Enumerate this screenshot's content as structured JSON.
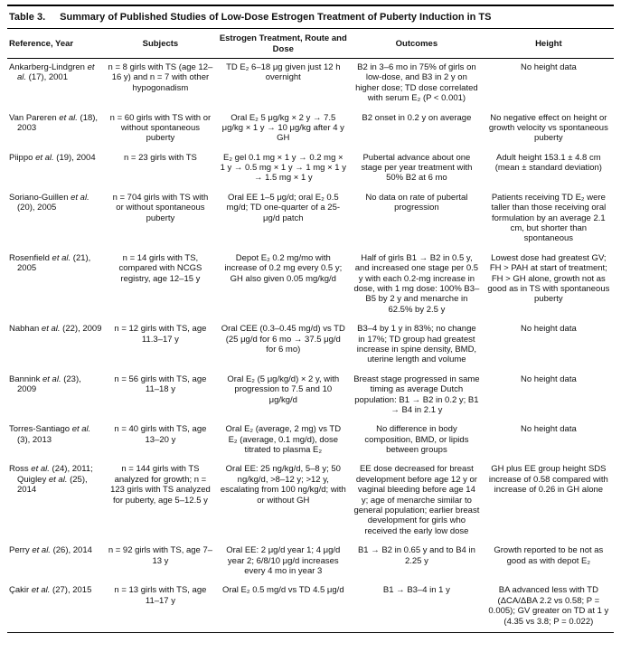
{
  "title": {
    "label": "Table 3.",
    "text": "Summary of Published Studies of Low-Dose Estrogen Treatment of Puberty Induction in TS"
  },
  "table": {
    "columns": [
      "Reference, Year",
      "Subjects",
      "Estrogen Treatment, Route and Dose",
      "Outcomes",
      "Height"
    ],
    "rows": [
      {
        "reference": "Ankarberg-Lindgren et al. (17), 2001",
        "subjects": "n = 8 girls with TS (age 12–16 y) and n = 7 with other hypogonadism",
        "treatment": "TD E₂ 6–18 μg given just 12 h overnight",
        "outcomes": "B2 in 3–6 mo in 75% of girls on low-dose, and B3 in 2 y on higher dose; TD dose correlated with serum E₂ (P < 0.001)",
        "height": "No height data"
      },
      {
        "reference": "Van Pareren et al. (18), 2003",
        "subjects": "n = 60 girls with TS with or without spontaneous puberty",
        "treatment": "Oral E₂ 5 μg/kg × 2 y → 7.5 μg/kg × 1 y → 10 μg/kg after 4 y GH",
        "outcomes": "B2 onset in 0.2 y on average",
        "height": "No negative effect on height or growth velocity vs spontaneous puberty"
      },
      {
        "reference": "Piippo et al. (19), 2004",
        "subjects": "n = 23 girls with TS",
        "treatment": "E₂ gel 0.1 mg × 1 y → 0.2 mg × 1 y → 0.5 mg × 1 y → 1 mg × 1 y → 1.5 mg × 1 y",
        "outcomes": "Pubertal advance about one stage per year treatment with 50% B2 at 6 mo",
        "height": "Adult height 153.1 ± 4.8 cm (mean ± standard deviation)"
      },
      {
        "reference": "Soriano-Guillen et al. (20), 2005",
        "subjects": "n = 704 girls with TS with or without spontaneous puberty",
        "treatment": "Oral EE 1–5 μg/d; oral E₂ 0.5 mg/d; TD one-quarter of a 25-μg/d patch",
        "outcomes": "No data on rate of pubertal progression",
        "height": "Patients receiving TD E₂ were taller than those receiving oral formulation by an average 2.1 cm, but shorter than spontaneous"
      },
      {
        "reference": "Rosenfield et al. (21), 2005",
        "subjects": "n = 14 girls with TS, compared with NCGS registry, age 12–15 y",
        "treatment": "Depot E₂ 0.2 mg/mo with increase of 0.2 mg every 0.5 y; GH also given 0.05 mg/kg/d",
        "outcomes": "Half of girls B1 → B2 in 0.5 y, and increased one stage per 0.5 y with each 0.2-mg increase in dose, with 1 mg dose: 100% B3–B5 by 2 y and menarche in 62.5% by 2.5 y",
        "height": "Lowest dose had greatest GV; FH > PAH at start of treatment; FH > GH alone, growth not as good as in TS with spontaneous puberty"
      },
      {
        "reference": "Nabhan et al. (22), 2009",
        "subjects": "n = 12 girls with TS, age 11.3–17 y",
        "treatment": "Oral CEE (0.3–0.45 mg/d) vs TD (25 μg/d for 6 mo → 37.5 μg/d for 6 mo)",
        "outcomes": "B3–4 by 1 y in 83%; no change in 17%; TD group had greatest increase in spine density, BMD, uterine length and volume",
        "height": "No height data"
      },
      {
        "reference": "Bannink et al. (23), 2009",
        "subjects": "n = 56 girls with TS, age 11–18 y",
        "treatment": "Oral E₂ (5 μg/kg/d) × 2 y, with progression to 7.5 and 10 μg/kg/d",
        "outcomes": "Breast stage progressed in same timing as average Dutch population: B1 → B2 in 0.2 y; B1 → B4 in 2.1 y",
        "height": "No height data"
      },
      {
        "reference": "Torres-Santiago et al. (3), 2013",
        "subjects": "n = 40 girls with TS, age 13–20 y",
        "treatment": "Oral E₂ (average, 2 mg) vs TD E₂ (average, 0.1 mg/d), dose titrated to plasma E₂",
        "outcomes": "No difference in body composition, BMD, or lipids between groups",
        "height": "No height data"
      },
      {
        "reference": "Ross et al. (24), 2011; Quigley et al. (25), 2014",
        "subjects": "n = 144 girls with TS analyzed for growth; n = 123 girls with TS analyzed for puberty, age 5–12.5 y",
        "treatment": "Oral EE: 25 ng/kg/d, 5–8 y; 50 ng/kg/d, >8–12 y; >12 y, escalating from 100 ng/kg/d; with or without GH",
        "outcomes": "EE dose decreased for breast development before age 12 y or vaginal bleeding before age 14 y; age of menarche similar to general population; earlier breast development for girls who received the early low dose",
        "height": "GH plus EE group height SDS increase of 0.58 compared with increase of 0.26 in GH alone"
      },
      {
        "reference": "Perry et al. (26), 2014",
        "subjects": "n = 92 girls with TS, age 7–13 y",
        "treatment": "Oral EE: 2 μg/d year 1; 4 μg/d year 2; 6/8/10 μg/d increases every 4 mo in year 3",
        "outcomes": "B1 → B2 in 0.65 y and to B4 in 2.25 y",
        "height": "Growth reported to be not as good as with depot E₂"
      },
      {
        "reference": "Çakir et al. (27), 2015",
        "subjects": "n = 13 girls with TS, age 11–17 y",
        "treatment": "Oral E₂ 0.5 mg/d vs TD 4.5 μg/d",
        "outcomes": "B1 → B3–4 in 1 y",
        "height": "BA advanced less with TD (ΔCA/ΔBA 2.2 vs 0.58; P = 0.005); GV greater on TD at 1 y (4.35 vs 3.8; P = 0.022)"
      }
    ]
  }
}
